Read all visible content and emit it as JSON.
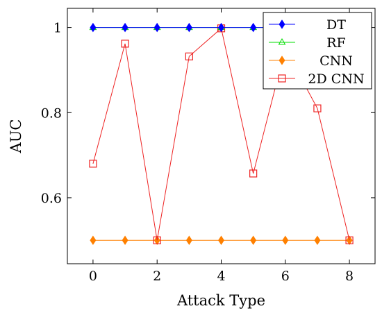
{
  "chart_data": {
    "type": "line",
    "xlabel": "Attack Type",
    "ylabel": "AUC",
    "xlim": [
      -0.8,
      8.8
    ],
    "ylim": [
      0.445,
      1.045
    ],
    "xticks": [
      0,
      2,
      4,
      6,
      8
    ],
    "yticks": [
      0.6,
      0.8,
      1
    ],
    "x": [
      0,
      1,
      2,
      3,
      4,
      5,
      6,
      7,
      8
    ],
    "grid": false,
    "legend_position": "top-right",
    "series": [
      {
        "name": "DT",
        "color": "#0000ff",
        "marker": "diamond-filled",
        "values": [
          1,
          1,
          1,
          1,
          1,
          1,
          1,
          1,
          1
        ]
      },
      {
        "name": "RF",
        "color": "#00dd00",
        "marker": "triangle-open",
        "values": [
          1,
          1,
          1,
          1,
          1,
          1,
          1,
          1,
          1
        ]
      },
      {
        "name": "CNN",
        "color": "#ff8000",
        "marker": "diamond-filled",
        "values": [
          0.5,
          0.5,
          0.5,
          0.5,
          0.5,
          0.5,
          0.5,
          0.5,
          0.5
        ]
      },
      {
        "name": "2D CNN",
        "color": "#ee2222",
        "marker": "square-open",
        "values": [
          0.68,
          0.962,
          0.5,
          0.932,
          0.998,
          0.657,
          0.95,
          0.81,
          0.5
        ]
      }
    ]
  }
}
